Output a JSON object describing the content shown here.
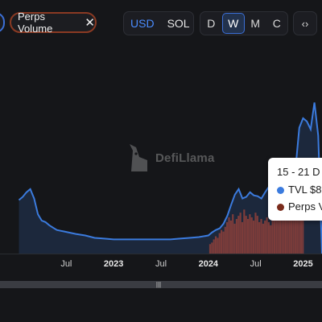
{
  "toolbar": {
    "chip_label": "Perps Volume",
    "chip_close": "✕",
    "currency_options": [
      "USD",
      "SOL"
    ],
    "currency_selected": "USD",
    "interval_options": [
      "D",
      "W",
      "M",
      "C"
    ],
    "interval_selected": "W",
    "embed_icon": "code-embed-icon",
    "embed_glyph": "‹›"
  },
  "watermark": {
    "text": "DefiLlama",
    "logo_icon": "llama-logo-icon"
  },
  "tooltip": {
    "date": "15 - 21 D",
    "rows": [
      {
        "label": "TVL  $8",
        "color": "#3b7bde"
      },
      {
        "label": "Perps V",
        "color": "#7a2b1b"
      }
    ]
  },
  "chart_data": {
    "type": "line",
    "x_ticks": [
      "Jul",
      "2023",
      "Jul",
      "2024",
      "Jul",
      "2025"
    ],
    "x_tick_positions": [
      0.25,
      0.5,
      0.75,
      1.0,
      1.25,
      1.5
    ],
    "series": [
      {
        "name": "TVL",
        "kind": "area-line",
        "color": "#3b7bde",
        "x": [
          0.0,
          0.02,
          0.04,
          0.06,
          0.08,
          0.1,
          0.12,
          0.14,
          0.16,
          0.18,
          0.2,
          0.22,
          0.24,
          0.26,
          0.28,
          0.3,
          0.35,
          0.4,
          0.45,
          0.5,
          0.55,
          0.6,
          0.65,
          0.7,
          0.75,
          0.8,
          0.85,
          0.9,
          0.95,
          1.0,
          1.02,
          1.04,
          1.06,
          1.08,
          1.1,
          1.12,
          1.14,
          1.16,
          1.18,
          1.2,
          1.22,
          1.24,
          1.26,
          1.28,
          1.3,
          1.32,
          1.34,
          1.36,
          1.38,
          1.4,
          1.42,
          1.44,
          1.46,
          1.48,
          1.5,
          1.52,
          1.54,
          1.56,
          1.58,
          1.6
        ],
        "values": [
          68,
          72,
          78,
          82,
          70,
          50,
          42,
          40,
          36,
          33,
          30,
          29,
          28,
          27,
          26,
          25,
          23,
          20,
          19,
          18,
          18,
          18,
          18,
          18,
          18,
          18,
          19,
          20,
          21,
          23,
          27,
          30,
          32,
          38,
          48,
          62,
          75,
          82,
          70,
          72,
          78,
          74,
          73,
          70,
          78,
          85,
          76,
          80,
          92,
          86,
          84,
          98,
          108,
          160,
          172,
          168,
          158,
          192,
          150,
          0
        ],
        "ylim": [
          0,
          220
        ]
      },
      {
        "name": "Perps Volume",
        "kind": "bar",
        "color": "#8a2f17",
        "x": [
          1.01,
          1.02,
          1.03,
          1.04,
          1.05,
          1.06,
          1.07,
          1.08,
          1.09,
          1.1,
          1.11,
          1.12,
          1.13,
          1.14,
          1.15,
          1.16,
          1.17,
          1.18,
          1.19,
          1.2,
          1.21,
          1.22,
          1.23,
          1.24,
          1.25,
          1.26,
          1.27,
          1.28,
          1.29,
          1.3,
          1.31,
          1.32,
          1.33,
          1.34,
          1.35,
          1.36,
          1.37,
          1.38,
          1.39,
          1.4,
          1.41,
          1.42,
          1.43,
          1.44,
          1.45,
          1.46,
          1.47,
          1.48,
          1.49,
          1.5
        ],
        "values": [
          12,
          14,
          18,
          22,
          20,
          26,
          30,
          28,
          34,
          40,
          46,
          42,
          50,
          38,
          44,
          48,
          52,
          40,
          56,
          48,
          44,
          50,
          46,
          42,
          52,
          48,
          40,
          44,
          38,
          42,
          46,
          40,
          36,
          44,
          50,
          54,
          46,
          42,
          58,
          52,
          48,
          56,
          62,
          70,
          66,
          60,
          72,
          68,
          64,
          60
        ],
        "ylim": [
          0,
          220
        ]
      }
    ],
    "grid": false,
    "legend": "none"
  },
  "scrollbar": {
    "handle_glyph": "|||"
  }
}
